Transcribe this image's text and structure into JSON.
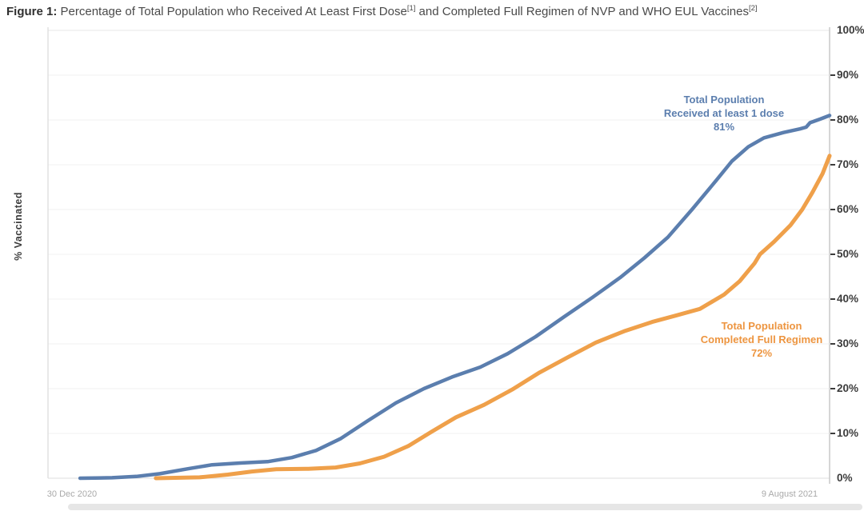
{
  "figure": {
    "label": "Figure 1:",
    "title_parts": {
      "part1": " Percentage of Total Population who Received At Least First Dose",
      "sup1": "[1]",
      "part2": " and Completed Full Regimen of NVP and WHO EUL Vaccines",
      "sup2": "[2]"
    }
  },
  "chart_data": {
    "type": "line",
    "title": "Percentage of Total Population who Received At Least First Dose and Completed Full Regimen of NVP and WHO EUL Vaccines",
    "ylabel": "% Vaccinated",
    "grid": true,
    "legend_position": "inline-annotations",
    "x_axis": {
      "start_label": "30 Dec 2020",
      "end_label": "9 August 2021",
      "x_unit": "fraction of axis from 30 Dec 2020 (0) to 9 August 2021 (1)"
    },
    "y_axis": {
      "min": 0,
      "max": 100,
      "side": "right",
      "ticks": [
        {
          "v": 100,
          "label": "100%",
          "dash": false
        },
        {
          "v": 90,
          "label": "90%",
          "dash": true
        },
        {
          "v": 80,
          "label": "80%",
          "dash": true
        },
        {
          "v": 70,
          "label": "70%",
          "dash": true
        },
        {
          "v": 60,
          "label": "60%",
          "dash": true
        },
        {
          "v": 50,
          "label": "50%",
          "dash": true
        },
        {
          "v": 40,
          "label": "40%",
          "dash": true
        },
        {
          "v": 30,
          "label": "30%",
          "dash": true
        },
        {
          "v": 20,
          "label": "20%",
          "dash": true
        },
        {
          "v": 10,
          "label": "10%",
          "dash": true
        },
        {
          "v": 0,
          "label": "0%",
          "dash": false
        }
      ]
    },
    "series": [
      {
        "name": "Total Population Received at least 1 dose",
        "color": "#5b7eae",
        "final_value_pct": 81,
        "annotation": {
          "line1": "Total Population",
          "line2": "Received at least 1 dose",
          "line3": "81%"
        },
        "points": [
          [
            0.041,
            0
          ],
          [
            0.082,
            0.1
          ],
          [
            0.113,
            0.4
          ],
          [
            0.143,
            1.0
          ],
          [
            0.179,
            2.1
          ],
          [
            0.21,
            3.0
          ],
          [
            0.246,
            3.4
          ],
          [
            0.281,
            3.7
          ],
          [
            0.312,
            4.6
          ],
          [
            0.343,
            6.2
          ],
          [
            0.374,
            8.8
          ],
          [
            0.409,
            12.8
          ],
          [
            0.445,
            16.8
          ],
          [
            0.481,
            20.0
          ],
          [
            0.517,
            22.6
          ],
          [
            0.553,
            24.8
          ],
          [
            0.588,
            27.8
          ],
          [
            0.624,
            31.6
          ],
          [
            0.66,
            36.0
          ],
          [
            0.696,
            40.3
          ],
          [
            0.732,
            44.8
          ],
          [
            0.763,
            49.2
          ],
          [
            0.793,
            53.8
          ],
          [
            0.824,
            60.0
          ],
          [
            0.855,
            66.5
          ],
          [
            0.875,
            70.8
          ],
          [
            0.896,
            74.0
          ],
          [
            0.916,
            76.0
          ],
          [
            0.941,
            77.2
          ],
          [
            0.962,
            78.0
          ],
          [
            0.97,
            78.4
          ],
          [
            0.975,
            79.4
          ],
          [
            0.988,
            80.2
          ],
          [
            1.0,
            81.0
          ]
        ]
      },
      {
        "name": "Total Population Completed Full Regimen",
        "color": "#efa04a",
        "annotation_color": "#ed9540",
        "final_value_pct": 72,
        "annotation": {
          "line1": "Total Population",
          "line2": "Completed Full Regimen",
          "line3": "72%"
        },
        "points": [
          [
            0.138,
            0
          ],
          [
            0.194,
            0.2
          ],
          [
            0.23,
            0.8
          ],
          [
            0.261,
            1.5
          ],
          [
            0.292,
            2.0
          ],
          [
            0.333,
            2.1
          ],
          [
            0.368,
            2.4
          ],
          [
            0.399,
            3.3
          ],
          [
            0.43,
            4.8
          ],
          [
            0.461,
            7.2
          ],
          [
            0.491,
            10.4
          ],
          [
            0.522,
            13.6
          ],
          [
            0.558,
            16.4
          ],
          [
            0.594,
            19.8
          ],
          [
            0.629,
            23.6
          ],
          [
            0.665,
            27.0
          ],
          [
            0.701,
            30.3
          ],
          [
            0.737,
            32.8
          ],
          [
            0.773,
            34.9
          ],
          [
            0.803,
            36.3
          ],
          [
            0.834,
            37.8
          ],
          [
            0.865,
            41.0
          ],
          [
            0.885,
            44.0
          ],
          [
            0.904,
            48.0
          ],
          [
            0.911,
            50.0
          ],
          [
            0.929,
            52.8
          ],
          [
            0.95,
            56.5
          ],
          [
            0.965,
            60.0
          ],
          [
            0.978,
            63.8
          ],
          [
            0.991,
            68.0
          ],
          [
            1.0,
            72.0
          ]
        ]
      }
    ]
  },
  "colors": {
    "blue_series": "#5b7eae",
    "orange_series": "#efa04a",
    "orange_annotation": "#ed9540",
    "gridline": "#f1f1f1",
    "axis_right": "#c9c9c9",
    "axis_left": "#dadada",
    "tick_text": "#3c3c3c",
    "date_text": "#a9a9a9"
  }
}
